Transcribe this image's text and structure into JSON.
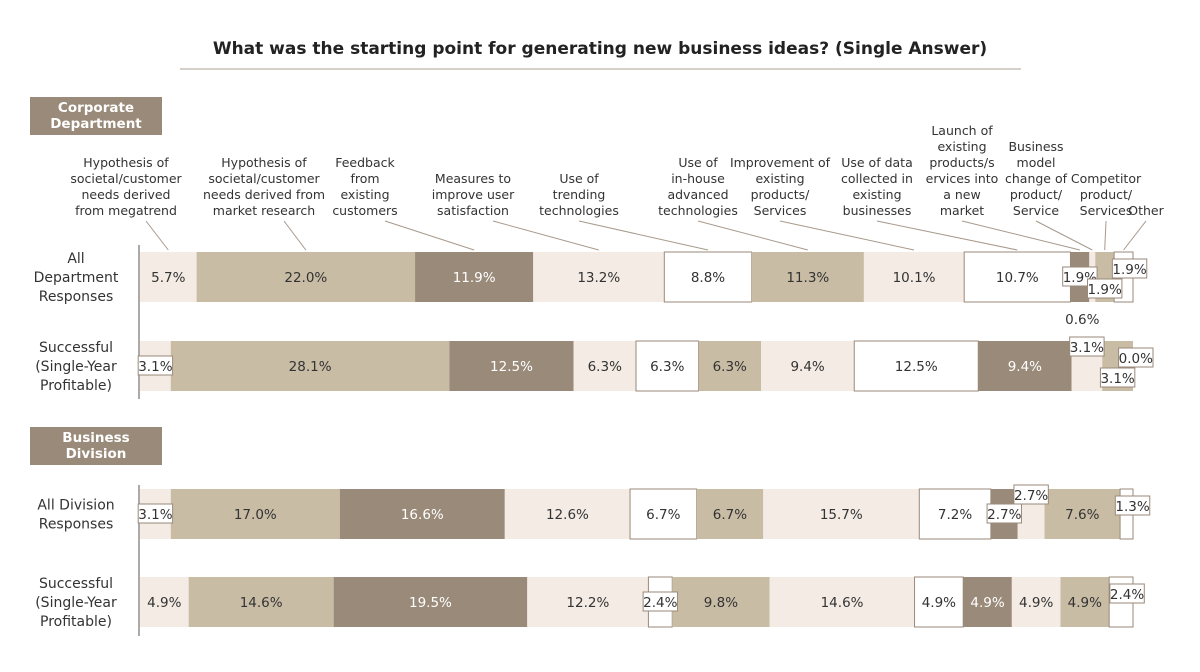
{
  "chart_data": {
    "type": "bar",
    "stacking": "100% horizontal",
    "title": "What was the starting point for generating new business ideas? (Single Answer)",
    "colors": {
      "light": "#f3ebe4",
      "tan": "#c9bca5",
      "dark": "#9a8a79",
      "white": "#ffffff",
      "border": "#9a8a79",
      "section": "#9a8a79",
      "text": "#333333",
      "leader": "#a89a8c"
    },
    "categories": [
      {
        "label": [
          "Hypothesis of",
          "societal/customer",
          "needs derived",
          "from megatrend"
        ],
        "style": "light"
      },
      {
        "label": [
          "Hypothesis of",
          "societal/customer",
          "needs derived from",
          "market research"
        ],
        "style": "tan"
      },
      {
        "label": [
          "Feedback",
          "from",
          "existing",
          "customers"
        ],
        "style": "dark"
      },
      {
        "label": [
          "Measures to",
          "improve user",
          "satisfaction"
        ],
        "style": "light"
      },
      {
        "label": [
          "Use of",
          "trending",
          "technologies"
        ],
        "style": "white"
      },
      {
        "label": [
          "Use of",
          "in-house",
          "advanced",
          "technologies"
        ],
        "style": "tan"
      },
      {
        "label": [
          "Improvement of",
          "existing",
          "products/",
          "Services"
        ],
        "style": "light"
      },
      {
        "label": [
          "Use of data",
          "collected in",
          "existing",
          "businesses"
        ],
        "style": "white"
      },
      {
        "label": [
          "Launch of",
          "existing",
          "products/s",
          "ervices into",
          "a new",
          "market"
        ],
        "style": "dark"
      },
      {
        "label": [
          "Business",
          "model",
          "change of",
          "product/",
          "Service"
        ],
        "style": "light"
      },
      {
        "label": [
          "Competitor",
          "product/",
          "Services"
        ],
        "style": "tan"
      },
      {
        "label": [
          "Other"
        ],
        "style": "white"
      }
    ],
    "sections": [
      {
        "name": [
          "Corporate",
          "Department"
        ],
        "rows": [
          {
            "label": [
              "All",
              "Department",
              "Responses"
            ],
            "values": [
              5.7,
              22.0,
              11.9,
              13.2,
              8.8,
              11.3,
              10.1,
              10.7,
              1.9,
              0.6,
              1.9,
              1.9
            ],
            "labels": [
              "5.7%",
              "22.0%",
              "11.9%",
              "13.2%",
              "8.8%",
              "11.3%",
              "10.1%",
              "10.7%",
              "1.9%",
              "0.6%",
              "1.9%",
              "1.9%"
            ]
          },
          {
            "label": [
              "Successful",
              "(Single-Year",
              "Profitable)"
            ],
            "values": [
              3.1,
              28.1,
              12.5,
              6.3,
              6.3,
              6.3,
              9.4,
              12.5,
              9.4,
              3.1,
              3.1,
              0.0
            ],
            "labels": [
              "3.1%",
              "28.1%",
              "12.5%",
              "6.3%",
              "6.3%",
              "6.3%",
              "9.4%",
              "12.5%",
              "9.4%",
              "3.1%",
              "3.1%",
              "0.0%"
            ]
          }
        ]
      },
      {
        "name": [
          "Business",
          "Division"
        ],
        "rows": [
          {
            "label": [
              "All Division",
              "Responses"
            ],
            "values": [
              3.1,
              17.0,
              16.6,
              12.6,
              6.7,
              6.7,
              15.7,
              7.2,
              2.7,
              2.7,
              7.6,
              1.3
            ],
            "labels": [
              "3.1%",
              "17.0%",
              "16.6%",
              "12.6%",
              "6.7%",
              "6.7%",
              "15.7%",
              "7.2%",
              "2.7%",
              "2.7%",
              "7.6%",
              "1.3%"
            ]
          },
          {
            "label": [
              "Successful",
              "(Single-Year",
              "Profitable)"
            ],
            "values": [
              4.9,
              14.6,
              19.5,
              12.2,
              2.4,
              9.8,
              14.6,
              4.9,
              4.9,
              4.9,
              4.9,
              2.4
            ],
            "labels": [
              "4.9%",
              "14.6%",
              "19.5%",
              "12.2%",
              "2.4%",
              "9.8%",
              "14.6%",
              "4.9%",
              "4.9%",
              "4.9%",
              "4.9%",
              "2.4%"
            ]
          }
        ]
      }
    ]
  }
}
